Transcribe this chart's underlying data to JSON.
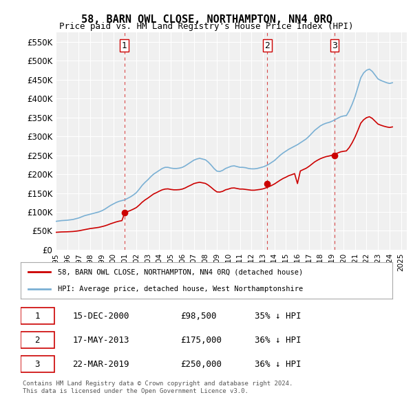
{
  "title": "58, BARN OWL CLOSE, NORTHAMPTON, NN4 0RQ",
  "subtitle": "Price paid vs. HM Land Registry's House Price Index (HPI)",
  "background_color": "#f0f0f0",
  "plot_bg_color": "#f0f0f0",
  "ylabel_ticks": [
    "£0",
    "£50K",
    "£100K",
    "£150K",
    "£200K",
    "£250K",
    "£300K",
    "£350K",
    "£400K",
    "£450K",
    "£500K",
    "£550K"
  ],
  "ytick_values": [
    0,
    50000,
    100000,
    150000,
    200000,
    250000,
    300000,
    350000,
    400000,
    450000,
    500000,
    550000
  ],
  "ylim": [
    0,
    575000
  ],
  "xlim_start": 1995.0,
  "xlim_end": 2025.5,
  "sale_dates": [
    2000.958,
    2013.375,
    2019.222
  ],
  "sale_prices": [
    98500,
    175000,
    250000
  ],
  "sale_labels": [
    "1",
    "2",
    "3"
  ],
  "dashed_line_color": "#cc0000",
  "sale_dot_color": "#cc0000",
  "red_line_color": "#cc0000",
  "blue_line_color": "#6699cc",
  "hpi_line_color": "#7ab0d4",
  "legend_label_red": "58, BARN OWL CLOSE, NORTHAMPTON, NN4 0RQ (detached house)",
  "legend_label_blue": "HPI: Average price, detached house, West Northamptonshire",
  "table_rows": [
    {
      "num": "1",
      "date": "15-DEC-2000",
      "price": "£98,500",
      "change": "35% ↓ HPI"
    },
    {
      "num": "2",
      "date": "17-MAY-2013",
      "price": "£175,000",
      "change": "36% ↓ HPI"
    },
    {
      "num": "3",
      "date": "22-MAR-2019",
      "price": "£250,000",
      "change": "36% ↓ HPI"
    }
  ],
  "footnote": "Contains HM Land Registry data © Crown copyright and database right 2024.\nThis data is licensed under the Open Government Licence v3.0.",
  "hpi_x": [
    1995.0,
    1995.25,
    1995.5,
    1995.75,
    1996.0,
    1996.25,
    1996.5,
    1996.75,
    1997.0,
    1997.25,
    1997.5,
    1997.75,
    1998.0,
    1998.25,
    1998.5,
    1998.75,
    1999.0,
    1999.25,
    1999.5,
    1999.75,
    2000.0,
    2000.25,
    2000.5,
    2000.75,
    2001.0,
    2001.25,
    2001.5,
    2001.75,
    2002.0,
    2002.25,
    2002.5,
    2002.75,
    2003.0,
    2003.25,
    2003.5,
    2003.75,
    2004.0,
    2004.25,
    2004.5,
    2004.75,
    2005.0,
    2005.25,
    2005.5,
    2005.75,
    2006.0,
    2006.25,
    2006.5,
    2006.75,
    2007.0,
    2007.25,
    2007.5,
    2007.75,
    2008.0,
    2008.25,
    2008.5,
    2008.75,
    2009.0,
    2009.25,
    2009.5,
    2009.75,
    2010.0,
    2010.25,
    2010.5,
    2010.75,
    2011.0,
    2011.25,
    2011.5,
    2011.75,
    2012.0,
    2012.25,
    2012.5,
    2012.75,
    2013.0,
    2013.25,
    2013.5,
    2013.75,
    2014.0,
    2014.25,
    2014.5,
    2014.75,
    2015.0,
    2015.25,
    2015.5,
    2015.75,
    2016.0,
    2016.25,
    2016.5,
    2016.75,
    2017.0,
    2017.25,
    2017.5,
    2017.75,
    2018.0,
    2018.25,
    2018.5,
    2018.75,
    2019.0,
    2019.25,
    2019.5,
    2019.75,
    2020.0,
    2020.25,
    2020.5,
    2020.75,
    2021.0,
    2021.25,
    2021.5,
    2021.75,
    2022.0,
    2022.25,
    2022.5,
    2022.75,
    2023.0,
    2023.25,
    2023.5,
    2023.75,
    2024.0,
    2024.25
  ],
  "hpi_y": [
    75000,
    76000,
    77000,
    77500,
    78000,
    79000,
    80000,
    82000,
    84000,
    87000,
    90000,
    92000,
    94000,
    96000,
    98000,
    100000,
    103000,
    107000,
    112000,
    117000,
    121000,
    125000,
    128000,
    130000,
    132000,
    136000,
    140000,
    145000,
    151000,
    160000,
    170000,
    178000,
    185000,
    193000,
    200000,
    205000,
    210000,
    215000,
    218000,
    218000,
    216000,
    215000,
    215000,
    216000,
    218000,
    222000,
    227000,
    232000,
    237000,
    240000,
    242000,
    240000,
    238000,
    232000,
    224000,
    215000,
    208000,
    207000,
    210000,
    215000,
    218000,
    221000,
    222000,
    220000,
    218000,
    218000,
    217000,
    215000,
    214000,
    214000,
    215000,
    217000,
    219000,
    222000,
    226000,
    231000,
    236000,
    243000,
    250000,
    256000,
    261000,
    266000,
    270000,
    274000,
    278000,
    283000,
    288000,
    293000,
    300000,
    308000,
    316000,
    322000,
    328000,
    332000,
    335000,
    337000,
    340000,
    344000,
    348000,
    352000,
    354000,
    355000,
    368000,
    385000,
    405000,
    430000,
    455000,
    468000,
    475000,
    478000,
    472000,
    462000,
    452000,
    448000,
    445000,
    442000,
    440000,
    442000
  ],
  "red_x": [
    1995.0,
    1995.25,
    1995.5,
    1995.75,
    1996.0,
    1996.25,
    1996.5,
    1996.75,
    1997.0,
    1997.25,
    1997.5,
    1997.75,
    1998.0,
    1998.25,
    1998.5,
    1998.75,
    1999.0,
    1999.25,
    1999.5,
    1999.75,
    2000.0,
    2000.25,
    2000.5,
    2000.75,
    2001.0,
    2001.25,
    2001.5,
    2001.75,
    2002.0,
    2002.25,
    2002.5,
    2002.75,
    2003.0,
    2003.25,
    2003.5,
    2003.75,
    2004.0,
    2004.25,
    2004.5,
    2004.75,
    2005.0,
    2005.25,
    2005.5,
    2005.75,
    2006.0,
    2006.25,
    2006.5,
    2006.75,
    2007.0,
    2007.25,
    2007.5,
    2007.75,
    2008.0,
    2008.25,
    2008.5,
    2008.75,
    2009.0,
    2009.25,
    2009.5,
    2009.75,
    2010.0,
    2010.25,
    2010.5,
    2010.75,
    2011.0,
    2011.25,
    2011.5,
    2011.75,
    2012.0,
    2012.25,
    2012.5,
    2012.75,
    2013.0,
    2013.25,
    2013.5,
    2013.75,
    2014.0,
    2014.25,
    2014.5,
    2014.75,
    2015.0,
    2015.25,
    2015.5,
    2015.75,
    2016.0,
    2016.25,
    2016.5,
    2016.75,
    2017.0,
    2017.25,
    2017.5,
    2017.75,
    2018.0,
    2018.25,
    2018.5,
    2018.75,
    2019.0,
    2019.25,
    2019.5,
    2019.75,
    2020.0,
    2020.25,
    2020.5,
    2020.75,
    2021.0,
    2021.25,
    2021.5,
    2021.75,
    2022.0,
    2022.25,
    2022.5,
    2022.75,
    2023.0,
    2023.25,
    2023.5,
    2023.75,
    2024.0,
    2024.25
  ],
  "red_y": [
    46000,
    46500,
    47000,
    47200,
    47400,
    47800,
    48200,
    49000,
    50000,
    51500,
    53000,
    54500,
    56000,
    57000,
    58000,
    59200,
    61000,
    63000,
    65500,
    68500,
    71000,
    73500,
    75500,
    77000,
    98500,
    101000,
    104000,
    107500,
    111500,
    118000,
    125500,
    131500,
    136500,
    142000,
    147500,
    151000,
    155000,
    158500,
    160500,
    161000,
    159500,
    158500,
    158500,
    159000,
    160500,
    163500,
    167500,
    171000,
    175000,
    177000,
    178500,
    177000,
    175500,
    171000,
    165000,
    158500,
    153000,
    152500,
    154500,
    158500,
    160500,
    163000,
    163500,
    162000,
    160500,
    160500,
    159500,
    158500,
    157500,
    157500,
    158500,
    159500,
    161000,
    163500,
    166500,
    170000,
    174000,
    179000,
    184000,
    188500,
    192000,
    196000,
    198500,
    201500,
    175000,
    208500,
    212000,
    215500,
    220500,
    226500,
    232500,
    237000,
    241000,
    244000,
    246500,
    248000,
    250000,
    253000,
    256000,
    259000,
    260500,
    261500,
    270500,
    283000,
    298000,
    316000,
    335000,
    344000,
    349500,
    352000,
    347500,
    340000,
    332500,
    329500,
    327000,
    325000,
    323500,
    325000
  ]
}
